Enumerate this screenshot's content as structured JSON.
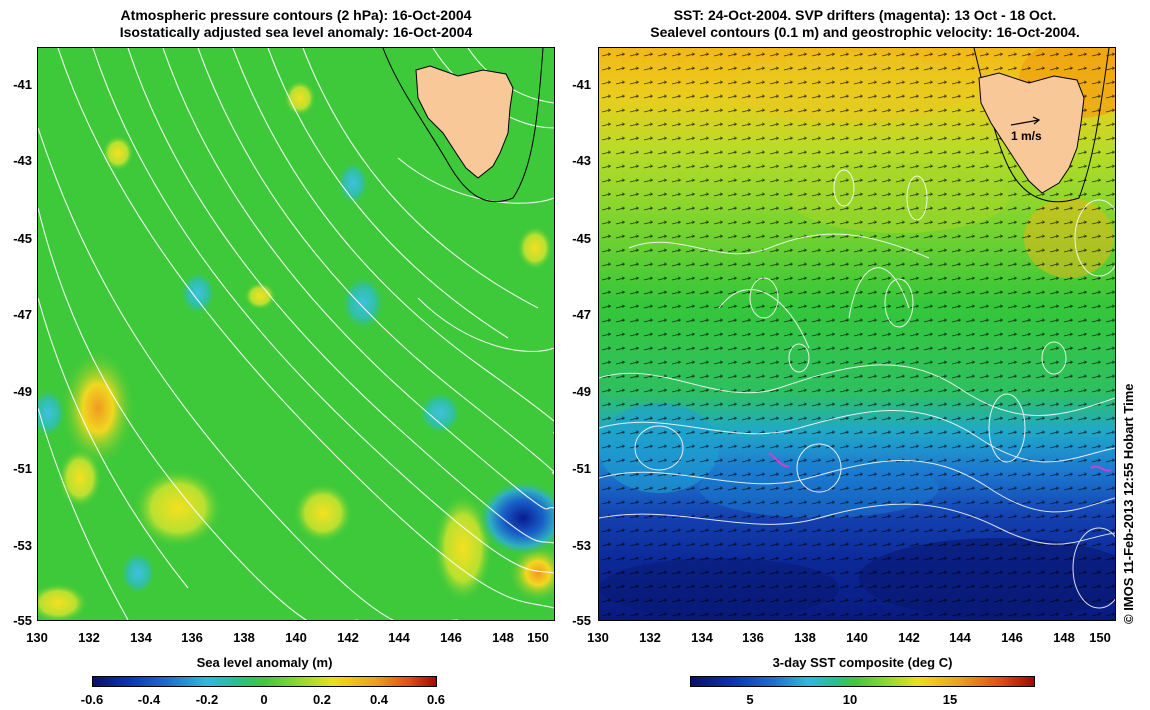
{
  "left_panel": {
    "title_line1": "Atmospheric pressure contours (2 hPa): 16-Oct-2004",
    "title_line2": "Isostatically adjusted sea level anomaly: 16-Oct-2004",
    "colorbar_label": "Sea level anomaly (m)",
    "colorbar_ticks": [
      "-0.6",
      "-0.4",
      "-0.2",
      "0",
      "0.2",
      "0.4",
      "0.6"
    ]
  },
  "right_panel": {
    "title_line1": "SST: 24-Oct-2004. SVP drifters (magenta): 13 Oct - 18 Oct.",
    "title_line2": "Sealevel contours (0.1 m) and geostrophic velocity: 16-Oct-2004.",
    "colorbar_label": "3-day SST composite (deg C)",
    "colorbar_ticks": [
      "5",
      "10",
      "15"
    ],
    "velocity_scale_label": "1 m/s"
  },
  "axes": {
    "x_ticks": [
      "130",
      "132",
      "134",
      "136",
      "138",
      "140",
      "142",
      "144",
      "146",
      "148",
      "150"
    ],
    "y_ticks": [
      "-41",
      "-43",
      "-45",
      "-47",
      "-49",
      "-51",
      "-53",
      "-55"
    ]
  },
  "credit": "© IMOS 11-Feb-2013 12:55 Hobart Time",
  "colors": {
    "land": "#f9c898",
    "sla_background": "#3ec93a",
    "sst_warm": "#f2b818",
    "sst_mid": "#2ec83a",
    "sst_cold": "#0a1e8c",
    "drifter": "#d040d0",
    "contour": "#ffffff"
  }
}
